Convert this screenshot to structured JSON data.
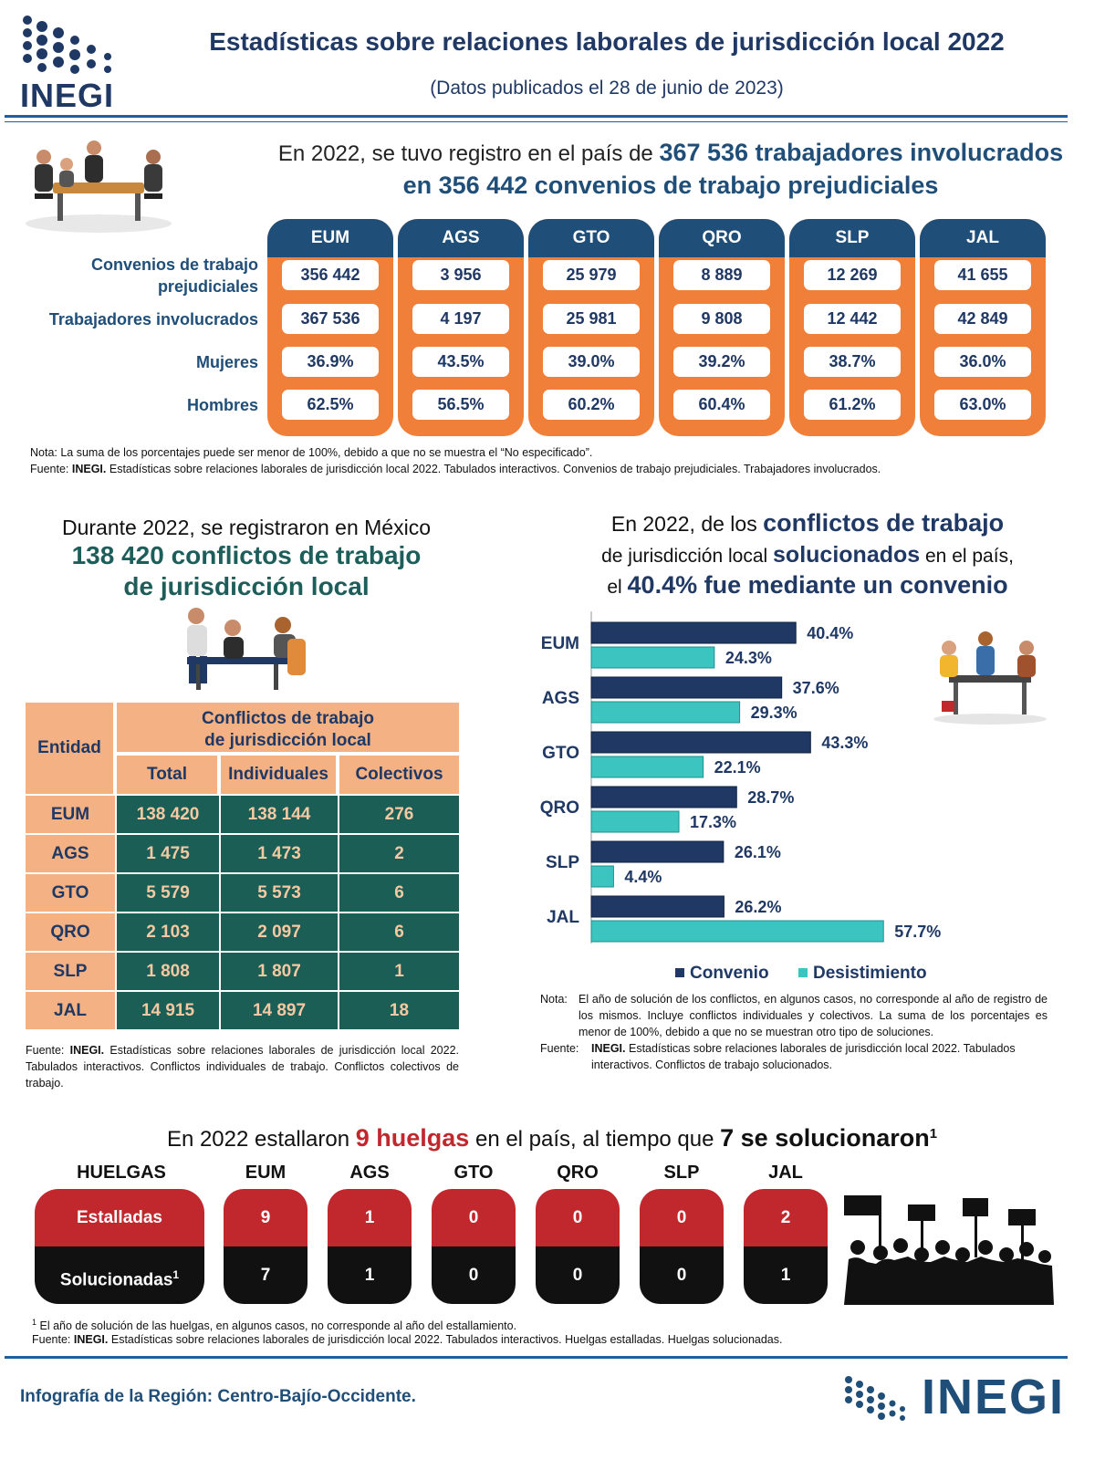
{
  "header": {
    "logo_text": "INEGI",
    "title": "Estadísticas sobre relaciones laborales de jurisdicción local 2022",
    "subtitle": "(Datos publicados el 28 de junio de 2023)"
  },
  "convenios_section": {
    "headline_prefix": "En 2022, se tuvo registro en el país de ",
    "headline_workers": "367 536 trabajadores involucrados",
    "headline_line2": "en 356 442 convenios de trabajo prejudiciales",
    "columns": [
      "EUM",
      "AGS",
      "GTO",
      "QRO",
      "SLP",
      "JAL"
    ],
    "row_labels": [
      "Convenios de trabajo prejudiciales",
      "Trabajadores involucrados",
      "Mujeres",
      "Hombres"
    ],
    "rows": [
      [
        "356 442",
        "3 956",
        "25 979",
        "8 889",
        "12 269",
        "41 655"
      ],
      [
        "367 536",
        "4 197",
        "25 981",
        "9 808",
        "12 442",
        "42 849"
      ],
      [
        "36.9%",
        "43.5%",
        "39.0%",
        "39.2%",
        "38.7%",
        "36.0%"
      ],
      [
        "62.5%",
        "56.5%",
        "60.2%",
        "60.4%",
        "61.2%",
        "63.0%"
      ]
    ],
    "note": "Nota: La suma de los porcentajes puede ser menor de 100%, debido a que no se muestra el “No especificado”.",
    "source_label": "Fuente: ",
    "source_org": "INEGI.",
    "source_text": " Estadísticas sobre relaciones laborales de jurisdicción local 2022. Tabulados interactivos. Convenios de trabajo prejudiciales. Trabajadores involucrados.",
    "accent_orange": "#ef7f39",
    "accent_navy": "#1f4e79"
  },
  "conflicts_section": {
    "line1": "Durante 2022, se registraron en México",
    "line2": "138 420 conflictos de trabajo",
    "line3": "de jurisdicción local",
    "col_entity": "Entidad",
    "group_header_1": "Conflictos de trabajo",
    "group_header_2": "de jurisdicción local",
    "sub_headers": [
      "Total",
      "Individuales",
      "Colectivos"
    ],
    "rows": [
      {
        "entity": "EUM",
        "total": "138 420",
        "individual": "138 144",
        "colectivo": "276"
      },
      {
        "entity": "AGS",
        "total": "1 475",
        "individual": "1 473",
        "colectivo": "2"
      },
      {
        "entity": "GTO",
        "total": "5 579",
        "individual": "5 573",
        "colectivo": "6"
      },
      {
        "entity": "QRO",
        "total": "2 103",
        "individual": "2 097",
        "colectivo": "6"
      },
      {
        "entity": "SLP",
        "total": "1 808",
        "individual": "1 807",
        "colectivo": "1"
      },
      {
        "entity": "JAL",
        "total": "14 915",
        "individual": "14 897",
        "colectivo": "18"
      }
    ],
    "source_label": "Fuente: ",
    "source_org": "INEGI.",
    "source_text": " Estadísticas sobre relaciones laborales de jurisdicción local 2022. Tabulados interactivos. Conflictos individuales de trabajo. Conflictos colectivos de trabajo.",
    "color_peach": "#f4b183",
    "color_green": "#1b5e55"
  },
  "solved_section": {
    "line1_prefix": "En 2022, de los ",
    "line1_bold": "conflictos de trabajo",
    "line2_prefix": "de jurisdicción local ",
    "line2_bold": "solucionados",
    "line2_suffix": " en el país,",
    "line3_prefix": "el ",
    "line3_bold": "40.4% fue mediante un convenio",
    "note_label": "Nota:",
    "note_text": "El año de solución de los conflictos, en algunos casos, no corresponde al año de registro de los mismos. Incluye conflictos individuales y colectivos. La suma de los porcentajes es menor de 100%, debido a que no se muestran otro tipo de soluciones.",
    "source_label": "Fuente:",
    "source_org": "INEGI.",
    "source_text": "Estadísticas sobre relaciones laborales de jurisdicción local 2022. Tabulados interactivos. Conflictos de trabajo solucionados."
  },
  "chart_data": {
    "type": "bar",
    "orientation": "horizontal",
    "categories": [
      "EUM",
      "AGS",
      "GTO",
      "QRO",
      "SLP",
      "JAL"
    ],
    "series": [
      {
        "name": "Convenio",
        "values": [
          40.4,
          37.6,
          43.3,
          28.7,
          26.1,
          26.2
        ],
        "color": "#1f3864"
      },
      {
        "name": "Desistimiento",
        "values": [
          24.3,
          29.3,
          22.1,
          17.3,
          4.4,
          57.7
        ],
        "color": "#3cc4c0"
      }
    ],
    "value_labels": [
      [
        "40.4%",
        "37.6%",
        "43.3%",
        "28.7%",
        "26.1%",
        "26.2%"
      ],
      [
        "24.3%",
        "29.3%",
        "22.1%",
        "17.3%",
        "4.4%",
        "57.7%"
      ]
    ],
    "xlim": [
      0,
      60
    ],
    "unit": "%",
    "legend_position": "bottom",
    "grid": false
  },
  "strikes_section": {
    "title_prefix": "En 2022 estallaron ",
    "title_strikes": "9 huelgas",
    "title_middle": " en el país, al tiempo que ",
    "title_solved": "7 se solucionaron",
    "title_sup": "1",
    "header_label": "HUELGAS",
    "columns": [
      "EUM",
      "AGS",
      "GTO",
      "QRO",
      "SLP",
      "JAL"
    ],
    "row1_label": "Estalladas",
    "row2_label": "Solucionadas",
    "row2_sup": "1",
    "estalladas": [
      "9",
      "1",
      "0",
      "0",
      "0",
      "2"
    ],
    "solucionadas": [
      "7",
      "1",
      "0",
      "0",
      "0",
      "1"
    ],
    "footnote_sup": "1",
    "footnote": " El año de solución de las huelgas, en algunos casos, no corresponde al año del estallamiento.",
    "source_label": "Fuente: ",
    "source_org": "INEGI.",
    "source_text": " Estadísticas sobre relaciones laborales de jurisdicción local 2022. Tabulados interactivos. Huelgas estalladas. Huelgas solucionadas.",
    "color_red": "#c0282d",
    "color_black": "#111111"
  },
  "footer": {
    "region_text": "Infografía de la Región: Centro-Bajío-Occidente.",
    "logo_text": "INEGI"
  },
  "icons": [
    "inegi-logo-icon",
    "meeting-icon",
    "discussion-icon",
    "negotiation-icon",
    "protest-crowd-icon"
  ]
}
